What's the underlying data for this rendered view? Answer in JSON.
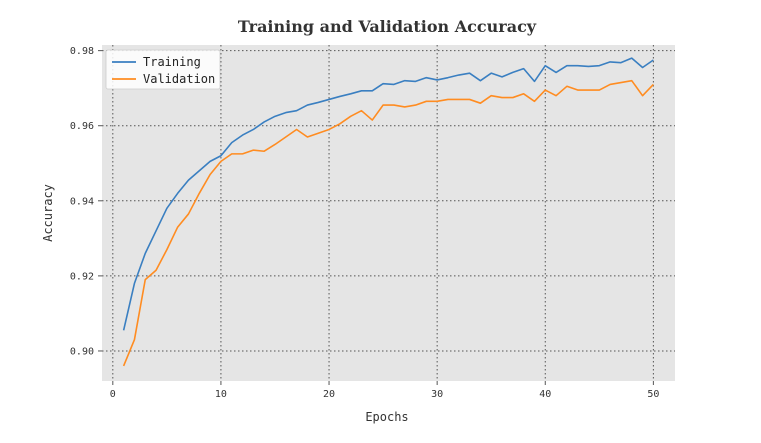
{
  "chart_data": {
    "type": "line",
    "title": "Training and Validation Accuracy",
    "xlabel": "Epochs",
    "ylabel": "Accuracy",
    "xlim": [
      -1,
      52
    ],
    "ylim": [
      0.892,
      0.9815
    ],
    "xticks": [
      0,
      10,
      20,
      30,
      40,
      50
    ],
    "yticks": [
      0.9,
      0.92,
      0.94,
      0.96,
      0.98
    ],
    "ytick_labels": [
      "0.90",
      "0.92",
      "0.94",
      "0.96",
      "0.98"
    ],
    "grid": true,
    "legend_position": "top-left",
    "background": "#e5e5e5",
    "x": [
      1,
      2,
      3,
      4,
      5,
      6,
      7,
      8,
      9,
      10,
      11,
      12,
      13,
      14,
      15,
      16,
      17,
      18,
      19,
      20,
      21,
      22,
      23,
      24,
      25,
      26,
      27,
      28,
      29,
      30,
      31,
      32,
      33,
      34,
      35,
      36,
      37,
      38,
      39,
      40,
      41,
      42,
      43,
      44,
      45,
      46,
      47,
      48,
      49,
      50
    ],
    "series": [
      {
        "name": "Training",
        "color": "#3a7fc1",
        "values": [
          0.9055,
          0.918,
          0.926,
          0.932,
          0.938,
          0.942,
          0.9455,
          0.948,
          0.9505,
          0.952,
          0.9555,
          0.9575,
          0.959,
          0.961,
          0.9625,
          0.9635,
          0.964,
          0.9655,
          0.9662,
          0.967,
          0.9678,
          0.9685,
          0.9693,
          0.9693,
          0.9712,
          0.971,
          0.972,
          0.9718,
          0.9728,
          0.9722,
          0.9728,
          0.9735,
          0.974,
          0.972,
          0.974,
          0.973,
          0.9742,
          0.9752,
          0.9718,
          0.976,
          0.9742,
          0.976,
          0.976,
          0.9758,
          0.976,
          0.977,
          0.9768,
          0.978,
          0.9755,
          0.9775
        ]
      },
      {
        "name": "Validation",
        "color": "#ff8c21",
        "values": [
          0.896,
          0.903,
          0.919,
          0.9215,
          0.927,
          0.933,
          0.9365,
          0.942,
          0.947,
          0.9505,
          0.9525,
          0.9525,
          0.9535,
          0.9532,
          0.955,
          0.957,
          0.959,
          0.957,
          0.958,
          0.959,
          0.9605,
          0.9625,
          0.964,
          0.9615,
          0.9655,
          0.9655,
          0.965,
          0.9655,
          0.9665,
          0.9665,
          0.967,
          0.967,
          0.967,
          0.966,
          0.968,
          0.9675,
          0.9675,
          0.9685,
          0.9665,
          0.9695,
          0.968,
          0.9705,
          0.9695,
          0.9695,
          0.9695,
          0.971,
          0.9715,
          0.972,
          0.968,
          0.971
        ]
      }
    ]
  }
}
